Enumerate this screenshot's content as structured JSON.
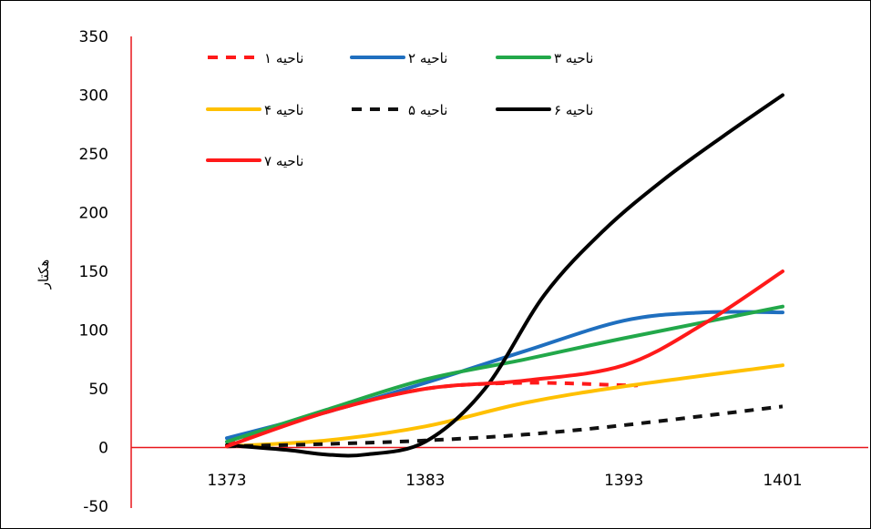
{
  "chart_data": {
    "type": "line",
    "title": "",
    "xlabel": "",
    "ylabel": "هکتار",
    "ylim": [
      -50,
      350
    ],
    "yticks": [
      350,
      300,
      250,
      200,
      150,
      100,
      50,
      0,
      -50
    ],
    "x_categories": [
      "1373",
      "1383",
      "1393",
      "1401"
    ],
    "legend_position": "top-left",
    "grid": false,
    "axis_color": "#e8161b",
    "series": [
      {
        "name": "ناحیه ۱",
        "color": "#ff1a1a",
        "dashed": true,
        "x": [
          1373,
          1378,
          1383,
          1388,
          1393,
          1393.7
        ],
        "y": [
          2,
          30,
          50,
          55,
          53,
          53
        ]
      },
      {
        "name": "ناحیه ۲",
        "color": "#1f6fbf",
        "dashed": false,
        "x": [
          1373,
          1378,
          1383,
          1388,
          1393,
          1397,
          1401
        ],
        "y": [
          8,
          30,
          55,
          82,
          108,
          115,
          115
        ]
      },
      {
        "name": "ناحیه ۳",
        "color": "#22a84a",
        "dashed": false,
        "x": [
          1373,
          1378,
          1383,
          1388,
          1393,
          1401
        ],
        "y": [
          5,
          32,
          58,
          75,
          93,
          120
        ]
      },
      {
        "name": "ناحیه ۴",
        "color": "#ffc000",
        "dashed": false,
        "x": [
          1373,
          1378,
          1383,
          1388,
          1393,
          1401
        ],
        "y": [
          1,
          6,
          18,
          38,
          52,
          70
        ]
      },
      {
        "name": "ناحیه ۵",
        "color": "#111111",
        "dashed": true,
        "x": [
          1373,
          1378,
          1383,
          1388,
          1393,
          1401
        ],
        "y": [
          1,
          3,
          6,
          11,
          19,
          35
        ]
      },
      {
        "name": "ناحیه ۶",
        "color": "#000000",
        "dashed": false,
        "x": [
          1373,
          1376,
          1378,
          1380,
          1383,
          1386,
          1389,
          1392,
          1395,
          1398,
          1401
        ],
        "y": [
          2,
          -2,
          -6,
          -6,
          5,
          50,
          130,
          185,
          228,
          265,
          300
        ]
      },
      {
        "name": "ناحیه ۷",
        "color": "#ff1a1a",
        "dashed": false,
        "x": [
          1373,
          1378,
          1383,
          1388,
          1393,
          1397,
          1401
        ],
        "y": [
          1,
          30,
          50,
          57,
          70,
          105,
          150
        ]
      }
    ]
  }
}
